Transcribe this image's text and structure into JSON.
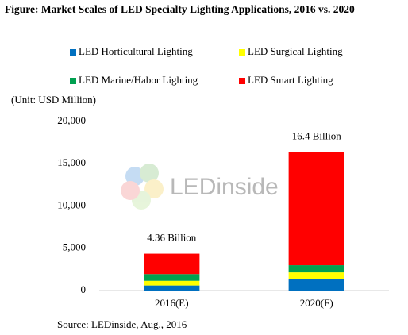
{
  "chart_data": {
    "type": "bar",
    "stacked": true,
    "title": "Figure: Market Scales of LED Specialty Lighting Applications, 2016 vs. 2020",
    "unit_label": "(Unit: USD Million)",
    "source": "Source: LEDinside, Aug., 2016",
    "watermark": "LEDinside",
    "categories": [
      "2016(E)",
      "2020(F)"
    ],
    "series": [
      {
        "name": "LED Horticultural Lighting",
        "color": "#0070c0",
        "values": [
          600,
          1400
        ]
      },
      {
        "name": "LED Surgical Lighting",
        "color": "#ffff00",
        "values": [
          550,
          750
        ]
      },
      {
        "name": "LED Marine/Habor Lighting",
        "color": "#00a050",
        "values": [
          800,
          850
        ]
      },
      {
        "name": "LED Smart Lighting",
        "color": "#ff0000",
        "values": [
          2410,
          13400
        ]
      }
    ],
    "annotations": [
      "4.36 Billion",
      "16.4 Billion"
    ],
    "ylim": [
      0,
      20000
    ],
    "yticks": [
      0,
      {
        "value": 5000,
        "label": "5,000"
      },
      {
        "value": 10000,
        "label": "10,000"
      },
      {
        "value": 15000,
        "label": "15,000"
      },
      {
        "value": 20000,
        "label": "20,000"
      }
    ],
    "grid": false
  }
}
